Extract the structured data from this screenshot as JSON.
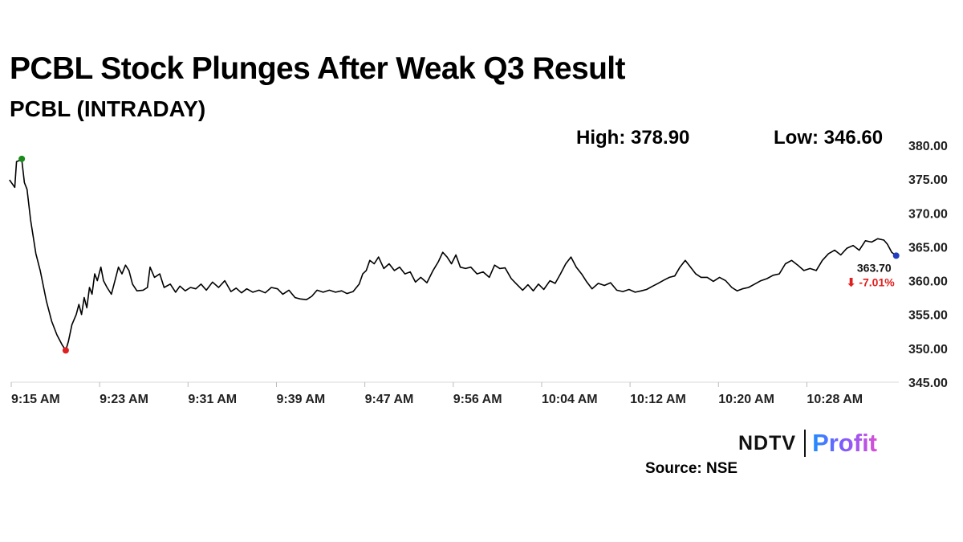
{
  "title": "PCBL Stock Plunges After Weak Q3 Result",
  "subtitle": "PCBL (INTRADAY)",
  "stats": {
    "high": "High: 378.90",
    "low": "Low: 346.60"
  },
  "logo": {
    "main": "NDTV",
    "accent": "Profit"
  },
  "source": "Source: NSE",
  "colors": {
    "line": "#000000",
    "high_marker": "#1a8a1a",
    "low_marker": "#e02020",
    "last_marker": "#1f3fbf",
    "change_down": "#e02020"
  },
  "chart_data": {
    "type": "line",
    "x_ticks": [
      "9:15 AM",
      "9:23 AM",
      "9:31 AM",
      "9:39 AM",
      "9:47 AM",
      "9:56 AM",
      "10:04 AM",
      "10:12 AM",
      "10:20 AM",
      "10:28 AM"
    ],
    "y_ticks": [
      "380.00",
      "375.00",
      "370.00",
      "365.00",
      "360.00",
      "355.00",
      "350.00",
      "345.00"
    ],
    "ylim": [
      345,
      380
    ],
    "xlim_minutes": [
      0,
      81
    ],
    "last_value_label": "363.70",
    "change_label": "-7.01%",
    "change_arrow": "⬇",
    "series": [
      {
        "points": [
          [
            -0.2,
            374.9
          ],
          [
            0.4,
            373.8
          ],
          [
            0.6,
            377.6
          ],
          [
            1.2,
            377.9
          ],
          [
            1.5,
            374.5
          ],
          [
            1.8,
            373.5
          ],
          [
            2.2,
            369.0
          ],
          [
            2.8,
            364.0
          ],
          [
            3.3,
            361.5
          ],
          [
            4.0,
            357.0
          ],
          [
            4.6,
            354.0
          ],
          [
            5.2,
            352.0
          ],
          [
            5.8,
            350.5
          ],
          [
            6.2,
            349.7
          ],
          [
            6.5,
            351.0
          ],
          [
            6.9,
            353.5
          ],
          [
            7.4,
            355.0
          ],
          [
            7.7,
            356.5
          ],
          [
            8.0,
            355.0
          ],
          [
            8.3,
            357.5
          ],
          [
            8.6,
            356.0
          ],
          [
            8.9,
            359.0
          ],
          [
            9.2,
            358.0
          ],
          [
            9.5,
            361.0
          ],
          [
            9.8,
            360.0
          ],
          [
            10.2,
            362.0
          ],
          [
            10.5,
            360.0
          ],
          [
            10.9,
            359.0
          ],
          [
            11.4,
            358.0
          ],
          [
            11.9,
            360.5
          ],
          [
            12.2,
            362.0
          ],
          [
            12.6,
            361.0
          ],
          [
            13.0,
            362.3
          ],
          [
            13.4,
            361.5
          ],
          [
            13.8,
            359.5
          ],
          [
            14.3,
            358.5
          ],
          [
            15.0,
            358.6
          ],
          [
            15.5,
            359.0
          ],
          [
            15.8,
            362.0
          ],
          [
            16.3,
            360.5
          ],
          [
            16.9,
            361.0
          ],
          [
            17.4,
            359.0
          ],
          [
            18.1,
            359.5
          ],
          [
            18.7,
            358.3
          ],
          [
            19.2,
            359.2
          ],
          [
            19.8,
            358.5
          ],
          [
            20.4,
            359.0
          ],
          [
            21.0,
            358.8
          ],
          [
            21.6,
            359.5
          ],
          [
            22.2,
            358.6
          ],
          [
            22.9,
            359.8
          ],
          [
            23.6,
            359.0
          ],
          [
            24.3,
            360.0
          ],
          [
            25.0,
            358.4
          ],
          [
            25.6,
            358.9
          ],
          [
            26.2,
            358.2
          ],
          [
            26.8,
            358.8
          ],
          [
            27.5,
            358.3
          ],
          [
            28.2,
            358.6
          ],
          [
            28.9,
            358.2
          ],
          [
            29.6,
            359.0
          ],
          [
            30.3,
            358.8
          ],
          [
            30.9,
            358.0
          ],
          [
            31.6,
            358.6
          ],
          [
            32.3,
            357.5
          ],
          [
            32.9,
            357.3
          ],
          [
            33.6,
            357.2
          ],
          [
            34.2,
            357.7
          ],
          [
            34.8,
            358.6
          ],
          [
            35.5,
            358.3
          ],
          [
            36.2,
            358.6
          ],
          [
            36.9,
            358.3
          ],
          [
            37.6,
            358.5
          ],
          [
            38.2,
            358.1
          ],
          [
            38.9,
            358.4
          ],
          [
            39.6,
            359.5
          ],
          [
            40.0,
            361.0
          ],
          [
            40.4,
            361.5
          ],
          [
            40.8,
            363.0
          ],
          [
            41.3,
            362.5
          ],
          [
            41.8,
            363.5
          ],
          [
            42.4,
            361.8
          ],
          [
            43.0,
            362.5
          ],
          [
            43.6,
            361.5
          ],
          [
            44.2,
            362.0
          ],
          [
            44.8,
            361.0
          ],
          [
            45.4,
            361.3
          ],
          [
            46.0,
            359.8
          ],
          [
            46.6,
            360.5
          ],
          [
            47.3,
            359.7
          ],
          [
            48.0,
            361.5
          ],
          [
            48.6,
            362.8
          ],
          [
            49.1,
            364.2
          ],
          [
            49.6,
            363.5
          ],
          [
            50.1,
            362.5
          ],
          [
            50.6,
            363.8
          ],
          [
            51.1,
            362.0
          ],
          [
            51.7,
            361.8
          ],
          [
            52.3,
            362.0
          ],
          [
            53.0,
            361.0
          ],
          [
            53.7,
            361.3
          ],
          [
            54.4,
            360.5
          ],
          [
            55.0,
            362.3
          ],
          [
            55.6,
            361.8
          ],
          [
            56.2,
            361.9
          ],
          [
            56.9,
            360.3
          ],
          [
            57.5,
            359.5
          ],
          [
            58.2,
            358.6
          ],
          [
            58.8,
            359.4
          ],
          [
            59.4,
            358.5
          ],
          [
            60.0,
            359.5
          ],
          [
            60.6,
            358.7
          ],
          [
            61.3,
            360.0
          ],
          [
            61.9,
            359.6
          ],
          [
            62.5,
            361.0
          ],
          [
            63.1,
            362.5
          ],
          [
            63.7,
            363.5
          ],
          [
            64.3,
            362.0
          ],
          [
            64.9,
            361.0
          ],
          [
            65.5,
            359.8
          ],
          [
            66.1,
            358.8
          ],
          [
            66.8,
            359.6
          ],
          [
            67.5,
            359.3
          ],
          [
            68.2,
            359.7
          ],
          [
            68.9,
            358.6
          ],
          [
            69.6,
            358.4
          ],
          [
            70.3,
            358.7
          ],
          [
            71.0,
            358.3
          ],
          [
            71.7,
            358.5
          ],
          [
            72.3,
            358.7
          ],
          [
            73.0,
            359.2
          ],
          [
            73.6,
            359.6
          ],
          [
            74.3,
            360.1
          ],
          [
            74.9,
            360.5
          ],
          [
            75.5,
            360.7
          ],
          [
            76.1,
            362.0
          ],
          [
            76.7,
            363.0
          ],
          [
            77.3,
            362.0
          ],
          [
            77.9,
            361.0
          ],
          [
            78.5,
            360.5
          ],
          [
            79.2,
            360.5
          ],
          [
            79.9,
            359.9
          ],
          [
            80.6,
            360.5
          ],
          [
            81.3,
            360.0
          ],
          [
            82.0,
            359.0
          ],
          [
            82.6,
            358.5
          ],
          [
            83.2,
            358.8
          ],
          [
            83.9,
            359.0
          ],
          [
            84.6,
            359.5
          ],
          [
            85.3,
            360.0
          ],
          [
            86.0,
            360.3
          ],
          [
            86.7,
            360.8
          ],
          [
            87.4,
            361.0
          ],
          [
            88.1,
            362.5
          ],
          [
            88.8,
            363.0
          ],
          [
            89.5,
            362.3
          ],
          [
            90.2,
            361.5
          ],
          [
            90.9,
            361.8
          ],
          [
            91.6,
            361.5
          ],
          [
            92.3,
            363.0
          ],
          [
            93.0,
            364.0
          ],
          [
            93.7,
            364.5
          ],
          [
            94.4,
            363.8
          ],
          [
            95.1,
            364.8
          ],
          [
            95.8,
            365.2
          ],
          [
            96.5,
            364.5
          ],
          [
            97.2,
            365.9
          ],
          [
            97.9,
            365.7
          ],
          [
            98.6,
            366.2
          ],
          [
            99.3,
            366.0
          ],
          [
            99.7,
            365.4
          ],
          [
            100.2,
            364.2
          ],
          [
            100.7,
            363.7
          ]
        ]
      }
    ],
    "high_point": {
      "x": 1.2,
      "y": 378.0
    },
    "low_point": {
      "x": 6.2,
      "y": 349.7
    },
    "last_point": {
      "x": 100.7,
      "y": 363.7
    }
  }
}
